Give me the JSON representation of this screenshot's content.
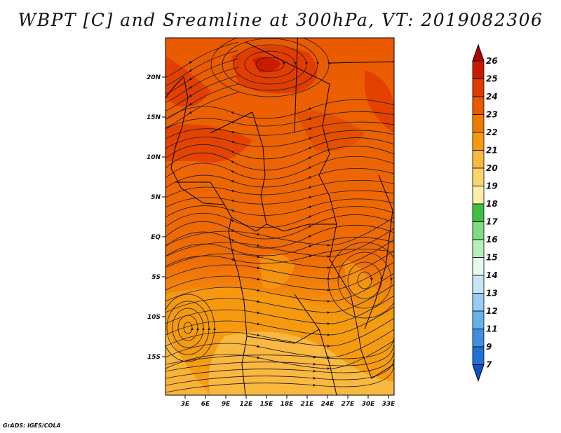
{
  "title": "WBPT [C] and Sreamline at 300hPa, VT: 2019082306",
  "credit": "GrADS: IGES/COLA",
  "lat_labels": [
    "20N",
    "15N",
    "10N",
    "5N",
    "EQ",
    "5S",
    "10S",
    "15S"
  ],
  "lon_labels": [
    "3E",
    "6E",
    "9E",
    "12E",
    "15E",
    "18E",
    "21E",
    "24E",
    "27E",
    "30E",
    "33E"
  ],
  "colorbar": {
    "labels": [
      "26",
      "25",
      "24",
      "23",
      "22",
      "21",
      "20",
      "19",
      "18",
      "17",
      "16",
      "15",
      "14",
      "13",
      "12",
      "11",
      "9",
      "7"
    ],
    "colors": [
      "#b20000",
      "#cc1a00",
      "#e03a00",
      "#ea5a00",
      "#f07a00",
      "#f59a10",
      "#f9b840",
      "#fcd470",
      "#fdeea8",
      "#40c040",
      "#80dc80",
      "#b8eeb8",
      "#e8faf0",
      "#c6e6f8",
      "#98ccf0",
      "#68b0ea",
      "#3f8fe0",
      "#2070d8",
      "#1050c8"
    ]
  }
}
